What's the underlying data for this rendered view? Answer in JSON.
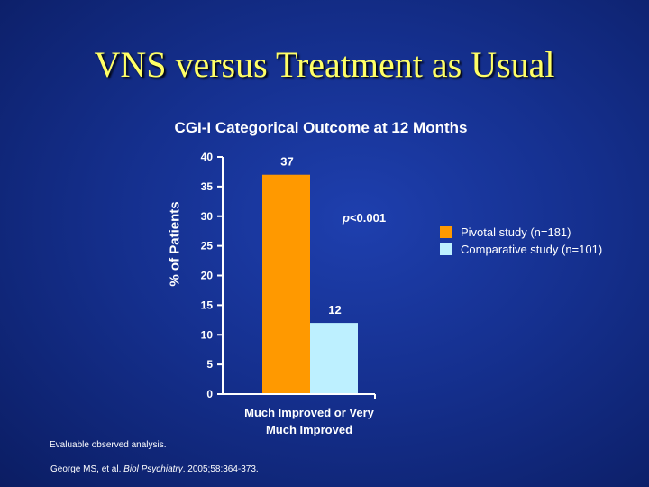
{
  "slide": {
    "title": "VNS versus Treatment as Usual",
    "note": "Evaluable observed analysis.",
    "citation_pre": "George MS, et al. ",
    "citation_journal": "Biol Psychiatry",
    "citation_post": ". 2005;58:364-373."
  },
  "chart_data": {
    "type": "bar",
    "title": "CGI-I Categorical Outcome at 12 Months",
    "ylabel": "% of Patients",
    "xlabel": "",
    "categories": [
      "Much Improved or Very Much Improved"
    ],
    "series": [
      {
        "name": "Pivotal study (n=181)",
        "values": [
          37
        ],
        "color": "#ff9900"
      },
      {
        "name": "Comparative study (n=101)",
        "values": [
          12
        ],
        "color": "#bdf0ff"
      }
    ],
    "ylim": [
      0,
      40
    ],
    "yticks": [
      0,
      5,
      10,
      15,
      20,
      25,
      30,
      35,
      40
    ],
    "annotation_p_symbol": "p",
    "annotation_p_value": "<0.001",
    "legend_position": "right",
    "grid": false
  }
}
